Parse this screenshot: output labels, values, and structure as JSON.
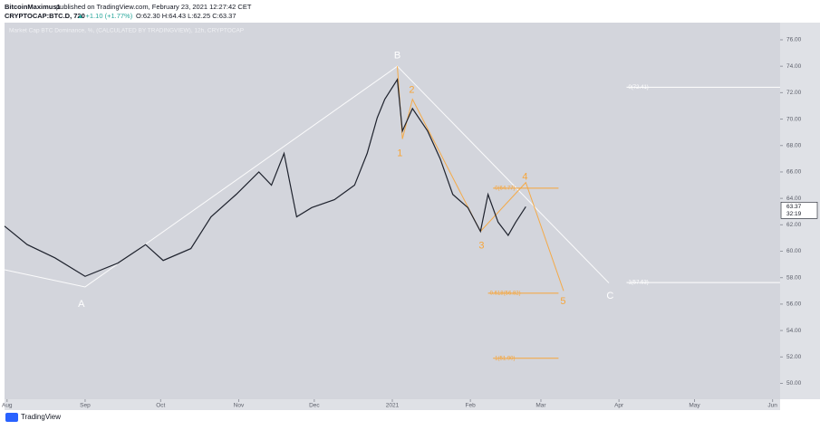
{
  "header": {
    "author": "BitcoinMaximus1",
    "published": "published on TradingView.com, February 23, 2021 12:27:42 CET",
    "symbol": "CRYPTOCAP:BTC.D, 720",
    "change": "▲ +1.10 (+1.77%)",
    "ohlc": "O:62.30 H:64.43 L:62.25 C:63.37"
  },
  "footer": {
    "brand": "TradingView"
  },
  "chart_data": {
    "type": "line",
    "title": "Market Cap BTC Dominance, %, (CALCULATED BY TRADINGVIEW), 12h, CRYPTOCAP",
    "color": "#1e222d",
    "x": [
      -1,
      8,
      19,
      31,
      44,
      55,
      62,
      73,
      81,
      91,
      100,
      105,
      110,
      115,
      121,
      130,
      138,
      143,
      147,
      150,
      155,
      157,
      161,
      167,
      172,
      177,
      183,
      188,
      191,
      195,
      199,
      202,
      206
    ],
    "values": [
      61.9,
      60.5,
      59.5,
      58.1,
      59.1,
      60.5,
      59.3,
      60.2,
      62.6,
      64.3,
      66.0,
      65.0,
      67.4,
      62.6,
      63.3,
      63.9,
      65.0,
      67.4,
      70.1,
      71.5,
      73.0,
      69.1,
      70.8,
      69.1,
      67.0,
      64.3,
      63.3,
      61.5,
      64.3,
      62.2,
      61.2,
      62.2,
      63.37
    ],
    "xlim": [
      -1,
      307
    ],
    "ylim": [
      48.8,
      77.3
    ],
    "xticks": [
      {
        "value": 0,
        "label": "Aug"
      },
      {
        "value": 31,
        "label": "Sep"
      },
      {
        "value": 61,
        "label": "Oct"
      },
      {
        "value": 92,
        "label": "Nov"
      },
      {
        "value": 122,
        "label": "Dec"
      },
      {
        "value": 153,
        "label": "2021"
      },
      {
        "value": 184,
        "label": "Feb"
      },
      {
        "value": 212,
        "label": "Mar"
      },
      {
        "value": 243,
        "label": "Apr"
      },
      {
        "value": 273,
        "label": "May"
      },
      {
        "value": 304,
        "label": "Jun"
      }
    ],
    "yticks": [
      {
        "value": 50,
        "label": "50.00"
      },
      {
        "value": 52,
        "label": "52.00"
      },
      {
        "value": 54,
        "label": "54.00"
      },
      {
        "value": 56,
        "label": "56.00"
      },
      {
        "value": 58,
        "label": "58.00"
      },
      {
        "value": 60,
        "label": "60.00"
      },
      {
        "value": 62,
        "label": "62.00"
      },
      {
        "value": 64,
        "label": "64.00"
      },
      {
        "value": 66,
        "label": "66.00"
      },
      {
        "value": 68,
        "label": "68.00"
      },
      {
        "value": 70,
        "label": "70.00"
      },
      {
        "value": 72,
        "label": "72.00"
      },
      {
        "value": 74,
        "label": "74.00"
      },
      {
        "value": 76,
        "label": "76.00"
      }
    ],
    "last_price_label": "63.37",
    "countdown": "32:19",
    "drawings": [
      {
        "color": "#ffffff",
        "x": [
          -1,
          31,
          155,
          239
        ],
        "y": [
          58.6,
          57.3,
          74,
          57.6
        ]
      },
      {
        "color": "#f7a539",
        "x": [
          155,
          157,
          161,
          188,
          206,
          221
        ],
        "y": [
          74,
          68.5,
          71.5,
          61.5,
          65.2,
          57.0
        ]
      }
    ],
    "fib_levels": [
      {
        "label": "0(72.41)",
        "value": 72.41,
        "from": 246,
        "to": 307,
        "color": "#ffffff"
      },
      {
        "label": "1(57.63)",
        "value": 57.63,
        "from": 246,
        "to": 307,
        "color": "#ffffff"
      },
      {
        "label": "0(64.77)",
        "value": 64.77,
        "from": 193,
        "to": 219,
        "color": "#f7a539"
      },
      {
        "label": "0.618(56.82)",
        "value": 56.82,
        "from": 191,
        "to": 219,
        "color": "#f7a539"
      },
      {
        "label": "1(51.90)",
        "value": 51.9,
        "from": 193,
        "to": 219,
        "color": "#f7a539"
      }
    ],
    "annotations": [
      {
        "text": "A",
        "x": 29.5,
        "y": 56.0,
        "color": "#ffffff"
      },
      {
        "text": "B",
        "x": 155,
        "y": 74.8,
        "color": "#ffffff"
      },
      {
        "text": "C",
        "x": 239.5,
        "y": 56.6,
        "color": "#ffffff"
      },
      {
        "text": "1",
        "x": 156,
        "y": 67.4,
        "color": "#f7a539"
      },
      {
        "text": "2",
        "x": 160.7,
        "y": 72.2,
        "color": "#f7a539"
      },
      {
        "text": "3",
        "x": 188.4,
        "y": 60.4,
        "color": "#f7a539"
      },
      {
        "text": "4",
        "x": 205.7,
        "y": 65.6,
        "color": "#f7a539"
      },
      {
        "text": "5",
        "x": 220.8,
        "y": 56.2,
        "color": "#f7a539"
      }
    ]
  }
}
